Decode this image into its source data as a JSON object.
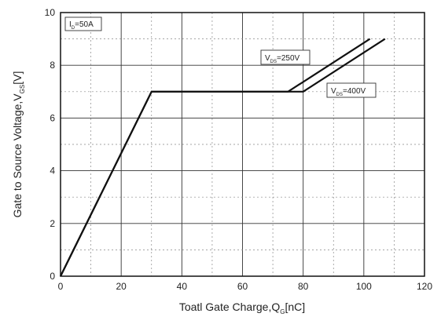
{
  "chart_data": {
    "type": "line",
    "xlabel": {
      "main": "Toatl Gate Charge,Q",
      "sub": "G",
      "unit": "[nC]"
    },
    "ylabel": {
      "main": "Gate to Source Voltage,V",
      "sub": "GS",
      "unit": "[V]"
    },
    "xlim": [
      0,
      120
    ],
    "ylim": [
      0,
      10
    ],
    "x_ticks": [
      0,
      20,
      40,
      60,
      80,
      100,
      120
    ],
    "y_ticks": [
      0,
      2,
      4,
      6,
      8,
      10
    ],
    "grid": true,
    "series": [
      {
        "name": "V_DS=250V",
        "x": [
          0,
          30,
          75,
          102
        ],
        "y": [
          0,
          7,
          7,
          9
        ]
      },
      {
        "name": "V_DS=400V",
        "x": [
          0,
          30,
          80,
          107
        ],
        "y": [
          0,
          7,
          7,
          9
        ]
      }
    ],
    "annotations": [
      {
        "main": "I",
        "sub": "D",
        "rest": "=50A"
      },
      {
        "main": "V",
        "sub": "DS",
        "rest": "=250V"
      },
      {
        "main": "V",
        "sub": "DS",
        "rest": "=400V"
      }
    ]
  }
}
